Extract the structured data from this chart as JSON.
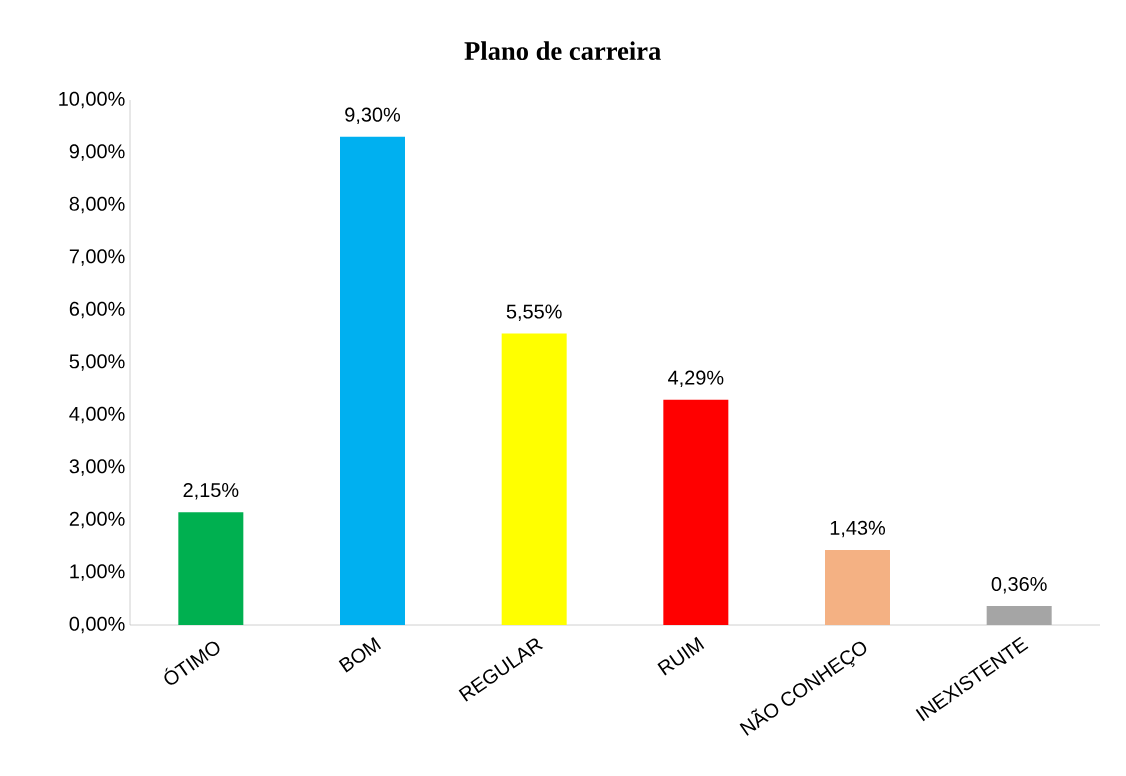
{
  "chart_data": {
    "type": "bar",
    "title": "Plano de carreira",
    "categories": [
      "ÓTIMO",
      "BOM",
      "REGULAR",
      "RUIM",
      "NÃO CONHEÇO",
      "INEXISTENTE"
    ],
    "values": [
      2.15,
      9.3,
      5.55,
      4.29,
      1.43,
      0.36
    ],
    "colors": [
      "#00b050",
      "#00b0f0",
      "#ffff00",
      "#ff0000",
      "#f4b183",
      "#a5a5a5"
    ],
    "value_labels": [
      "2,15%",
      "9,30%",
      "5,55%",
      "4,29%",
      "1,43%",
      "0,36%"
    ],
    "ylim": [
      0,
      10
    ],
    "yticks": [
      {
        "value": 0,
        "label": "0,00%"
      },
      {
        "value": 1,
        "label": "1,00%"
      },
      {
        "value": 2,
        "label": "2,00%"
      },
      {
        "value": 3,
        "label": "3,00%"
      },
      {
        "value": 4,
        "label": "4,00%"
      },
      {
        "value": 5,
        "label": "5,00%"
      },
      {
        "value": 6,
        "label": "6,00%"
      },
      {
        "value": 7,
        "label": "7,00%"
      },
      {
        "value": 8,
        "label": "8,00%"
      },
      {
        "value": 9,
        "label": "9,00%"
      },
      {
        "value": 10,
        "label": "10,00%"
      }
    ]
  }
}
